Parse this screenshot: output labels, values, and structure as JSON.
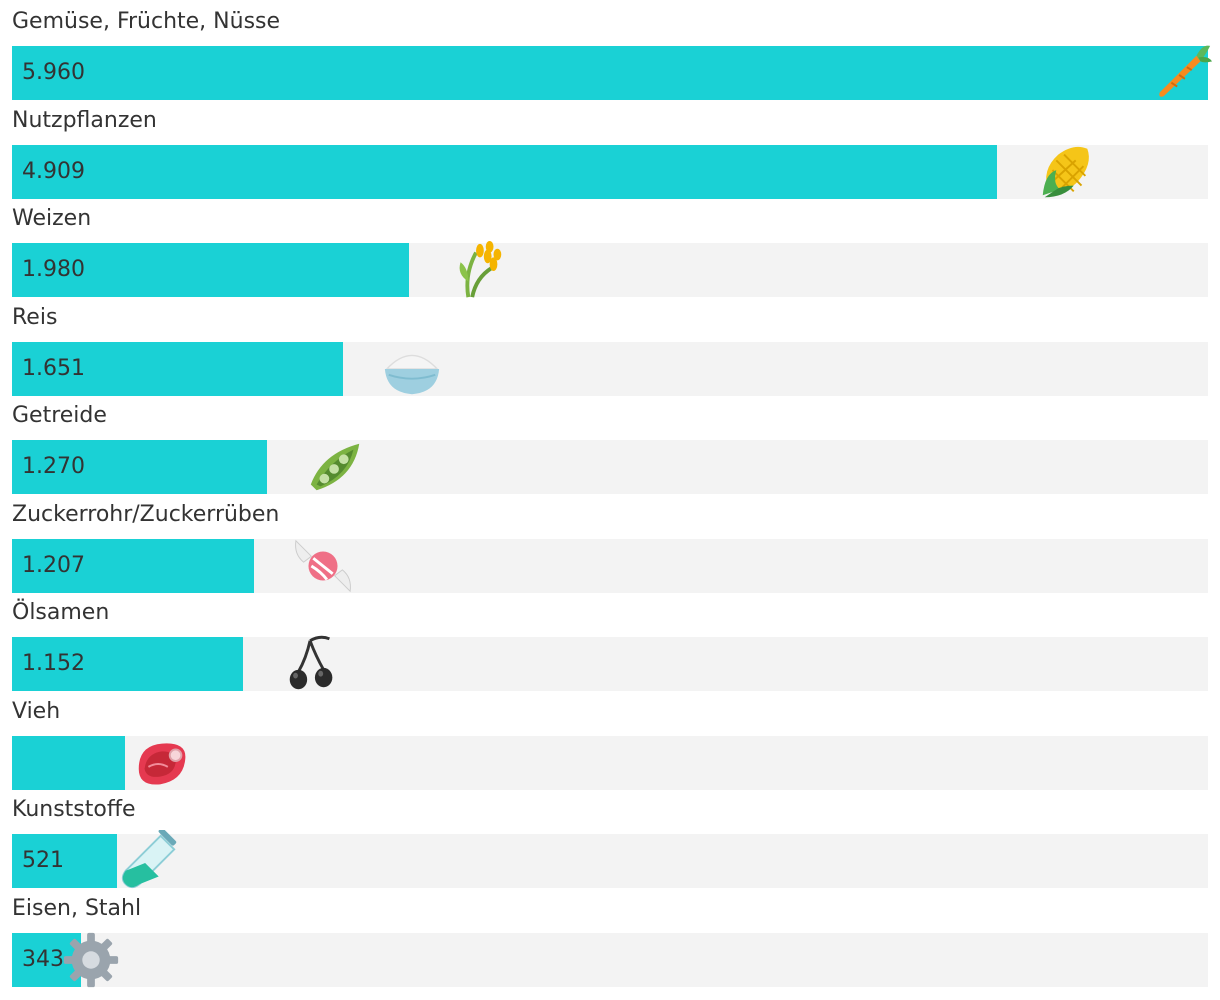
{
  "chart_data": {
    "type": "bar",
    "orientation": "horizontal",
    "categories": [
      "Gemüse, Früchte, Nüsse",
      "Nutzpflanzen",
      "Weizen",
      "Reis",
      "Getreide",
      "Zuckerrohr/Zuckerrüben",
      "Ölsamen",
      "Vieh",
      "Kunststoffe",
      "Eisen, Stahl"
    ],
    "values": [
      5960,
      4909,
      1980,
      1651,
      1270,
      1207,
      1152,
      565,
      521,
      343
    ],
    "value_labels": [
      "5.960",
      "4.909",
      "1.980",
      "1.651",
      "1.270",
      "1.207",
      "1.152",
      "",
      "521",
      "343"
    ],
    "icons": [
      "carrot-icon",
      "corn-icon",
      "rice-plant-icon",
      "rice-bowl-icon",
      "pea-pod-icon",
      "candy-icon",
      "olive-icon",
      "meat-icon",
      "test-tube-icon",
      "gear-icon"
    ],
    "xlim": [
      0,
      5960
    ],
    "grid": false,
    "legend": "none",
    "colors": {
      "bar": "#1ad1d5",
      "track": "#f3f3f3",
      "text": "#333333"
    }
  }
}
